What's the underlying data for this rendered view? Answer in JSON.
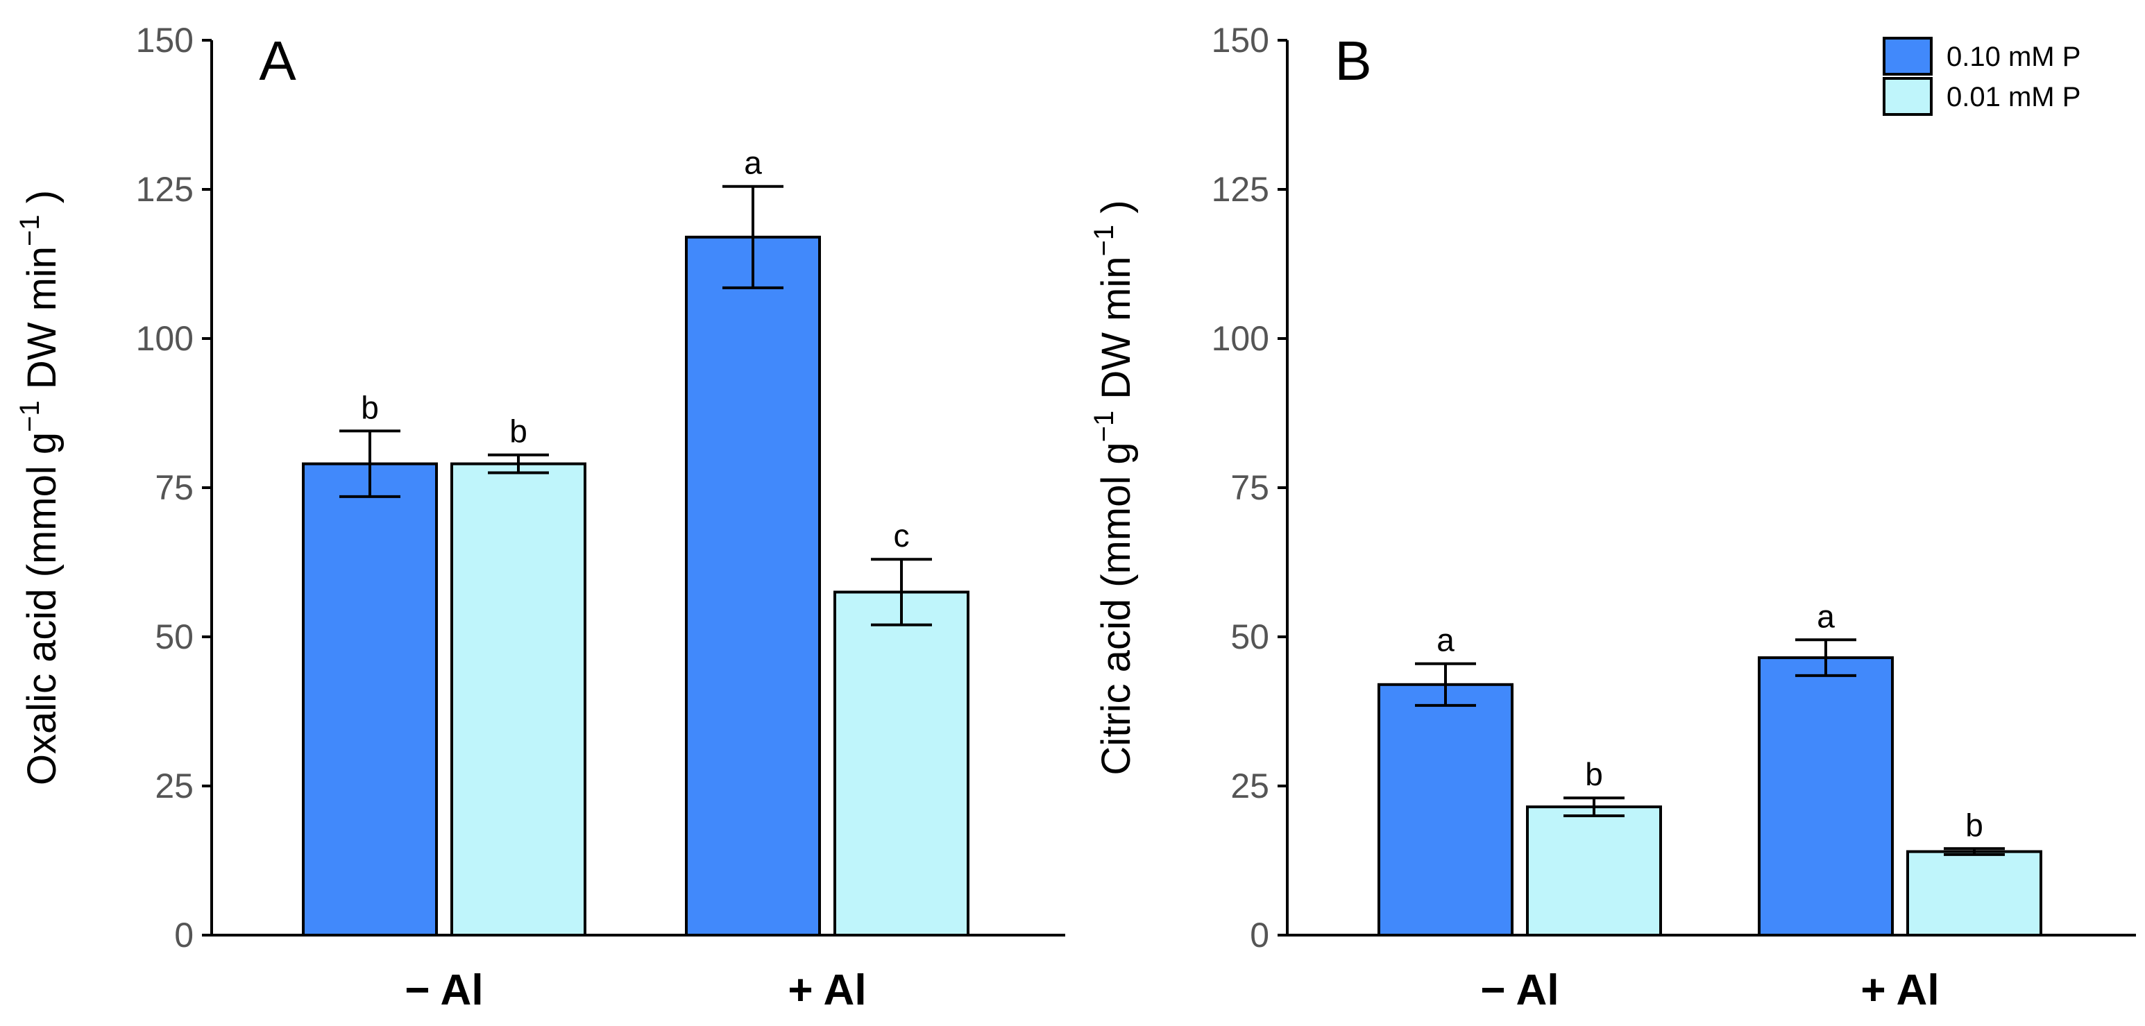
{
  "chart_data": [
    {
      "type": "bar",
      "panel_label": "A",
      "ylabel": {
        "text": "Oxalic acid (mmol  g",
        "sup1": "−1",
        "mid": " DW min",
        "sup2": "−1",
        "end": " )"
      },
      "ylim": [
        0,
        150
      ],
      "yticks": [
        0,
        25,
        50,
        75,
        100,
        125,
        150
      ],
      "categories": [
        "− Al",
        "+ Al"
      ],
      "series": [
        {
          "name": "0.10 mM P",
          "color": "#4189fb",
          "values": [
            79,
            117
          ],
          "errors": [
            5.5,
            8.5
          ],
          "letters": [
            "b",
            "a"
          ]
        },
        {
          "name": "0.01 mM P",
          "color": "#bff5fb",
          "values": [
            79,
            57.5
          ],
          "errors": [
            1.5,
            5.5
          ],
          "letters": [
            "b",
            "c"
          ]
        }
      ]
    },
    {
      "type": "bar",
      "panel_label": "B",
      "ylabel": {
        "text": "Citric acid (mmol  g",
        "sup1": "−1",
        "mid": " DW min",
        "sup2": "−1",
        "end": " )"
      },
      "ylim": [
        0,
        150
      ],
      "yticks": [
        0,
        25,
        50,
        75,
        100,
        125,
        150
      ],
      "categories": [
        "− Al",
        "+ Al"
      ],
      "series": [
        {
          "name": "0.10 mM P",
          "color": "#4189fb",
          "values": [
            42,
            46.5
          ],
          "errors": [
            3.5,
            3
          ],
          "letters": [
            "a",
            "a"
          ]
        },
        {
          "name": "0.01 mM P",
          "color": "#bff5fb",
          "values": [
            21.5,
            14
          ],
          "errors": [
            1.5,
            0.5
          ],
          "letters": [
            "b",
            "b"
          ]
        }
      ]
    }
  ],
  "legend": {
    "placement": "top-right",
    "entries": [
      {
        "label": "0.10 mM P",
        "color": "#4189fb"
      },
      {
        "label": "0.01 mM P",
        "color": "#bff5fb"
      }
    ]
  }
}
